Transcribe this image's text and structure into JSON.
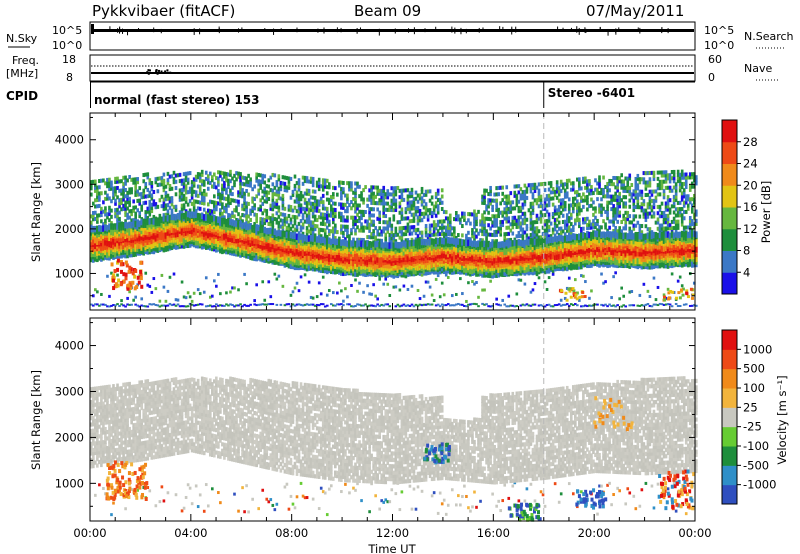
{
  "header": {
    "radar_title": "Pykkvibaer (fitACF)",
    "beam": "Beam 09",
    "date": "07/May/2011"
  },
  "panels": {
    "nsky": {
      "left_label": "N.Sky",
      "left_ticks": [
        "10^5",
        "10^0"
      ],
      "right_ticks": [
        "10^5",
        "10^0"
      ],
      "right_label": "N.Search"
    },
    "freq": {
      "left_label_top": "Freq.",
      "left_label_unit": "[MHz]",
      "left_ticks": [
        "18",
        "8"
      ],
      "right_ticks": [
        "60",
        "0"
      ],
      "right_label": "Nave"
    },
    "cpid": {
      "label": "CPID",
      "mode_1": "normal (fast stereo) 153",
      "mode_2": "Stereo -6401",
      "mode_2_start_hour": 18
    }
  },
  "chart_data": [
    {
      "type": "heatmap",
      "name": "Power",
      "ylabel": "Slant Range [km]",
      "ylim": [
        180,
        4600
      ],
      "xlim": [
        0,
        24
      ],
      "y_ticks": [
        1000,
        2000,
        3000,
        4000
      ],
      "colorbar_label": "Power [dB]",
      "colorbar_ticks": [
        "4",
        "8",
        "12",
        "16",
        "20",
        "24",
        "28"
      ],
      "colorbar_colors": [
        "#1a10e8",
        "#3b78c6",
        "#1e8e3c",
        "#66b73f",
        "#e2c414",
        "#f08a1a",
        "#ee4a16",
        "#e01010"
      ],
      "main_band": {
        "x_hours": [
          0,
          2,
          4,
          6,
          8,
          10,
          12,
          14,
          16,
          18,
          20,
          22,
          24
        ],
        "range_km": [
          1700,
          1850,
          2050,
          1800,
          1550,
          1400,
          1350,
          1450,
          1350,
          1450,
          1600,
          1550,
          1600
        ]
      }
    },
    {
      "type": "heatmap",
      "name": "Velocity",
      "ylabel": "Slant Range [km]",
      "ylim": [
        180,
        4600
      ],
      "xlim": [
        0,
        24
      ],
      "y_ticks": [
        1000,
        2000,
        3000,
        4000
      ],
      "colorbar_label": "Velocity [m s⁻¹]",
      "colorbar_ticks": [
        "1000",
        "500",
        "100",
        "25",
        "-25",
        "-100",
        "-500",
        "-1000"
      ],
      "colorbar_colors": [
        "#2f4fbf",
        "#2f8fc8",
        "#1e8e3c",
        "#66cc33",
        "#c8c8c0",
        "#f2b43c",
        "#f08a1a",
        "#ee4a16",
        "#e01010"
      ]
    }
  ],
  "time_axis": {
    "label": "Time UT",
    "ticks": [
      "00:00",
      "04:00",
      "08:00",
      "12:00",
      "16:00",
      "20:00",
      "00:00"
    ]
  }
}
